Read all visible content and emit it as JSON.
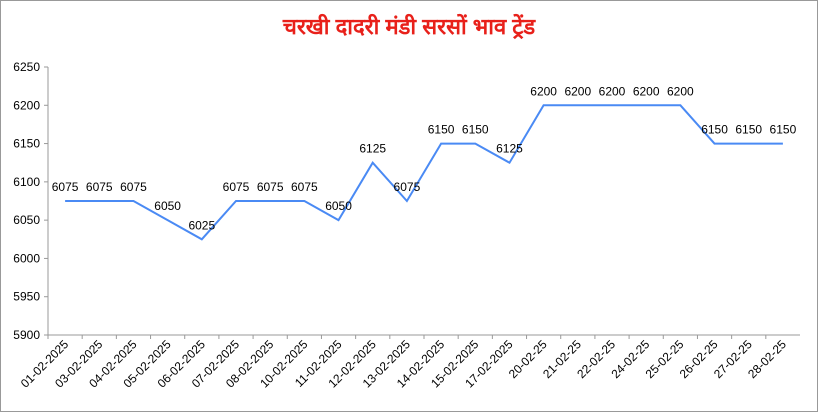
{
  "chart_data": {
    "type": "line",
    "title": "चरखी दादरी मंडी सरसों भाव ट्रेंड",
    "categories": [
      "01-02-2025",
      "03-02-2025",
      "04-02-2025",
      "05-02-2025",
      "06-02-2025",
      "07-02-2025",
      "08-02-2025",
      "10-02-2025",
      "11-02-2025",
      "12-02-2025",
      "13-02-2025",
      "14-02-2025",
      "15-02-2025",
      "17-02-2025",
      "20-02-25",
      "21-02-25",
      "22-02-25",
      "24-02-25",
      "25-02-25",
      "26-02-25",
      "27-02-25",
      "28-02-25"
    ],
    "values": [
      6075,
      6075,
      6075,
      6050,
      6025,
      6075,
      6075,
      6075,
      6050,
      6125,
      6075,
      6150,
      6150,
      6125,
      6200,
      6200,
      6200,
      6200,
      6200,
      6150,
      6150,
      6150
    ],
    "color": "#4a8af4",
    "ylim": [
      5900,
      6250
    ],
    "yticks": [
      5900,
      5950,
      6000,
      6050,
      6100,
      6150,
      6200,
      6250
    ],
    "grid": false
  }
}
